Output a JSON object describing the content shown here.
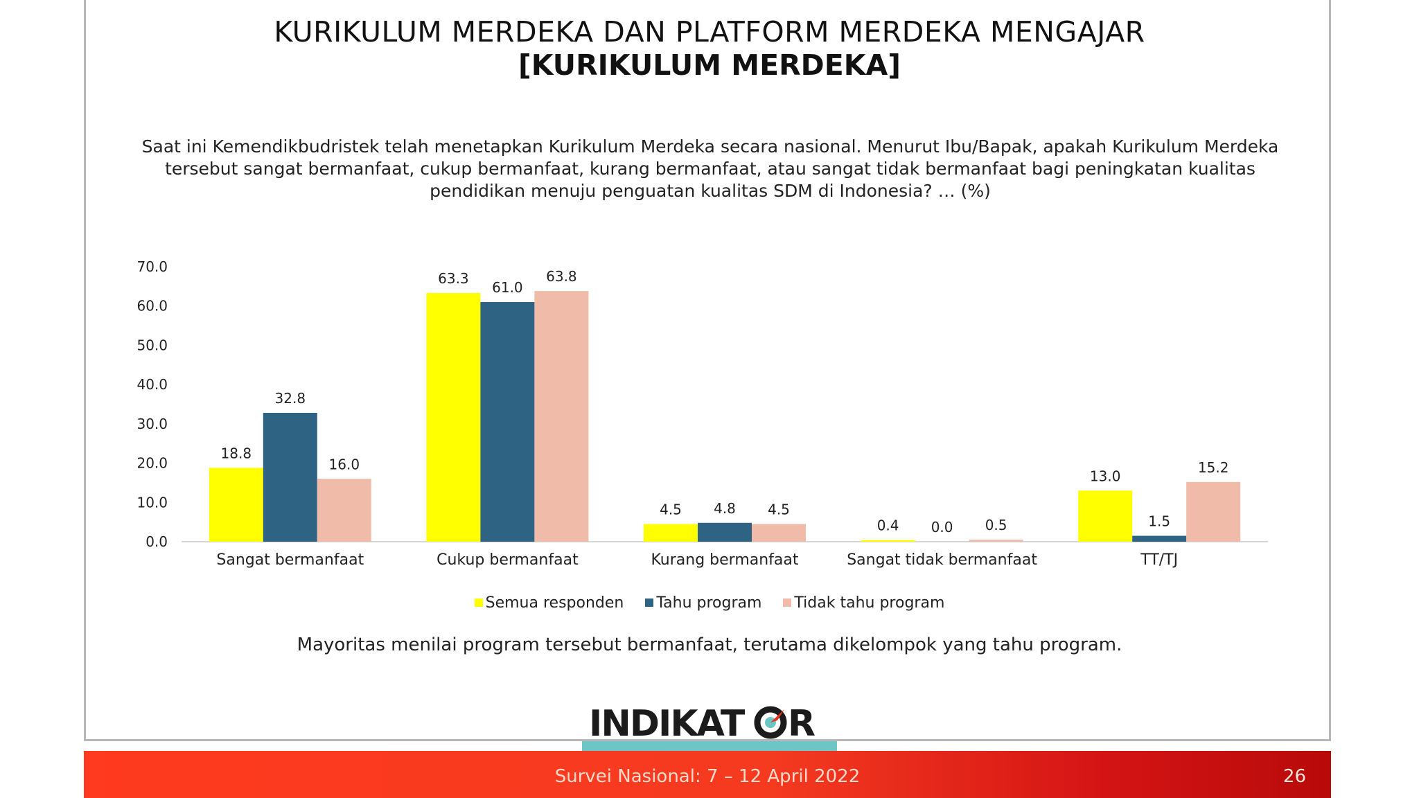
{
  "title": "KURIKULUM MERDEKA DAN PLATFORM MERDEKA MENGAJAR",
  "subtitle": "[KURIKULUM MERDEKA]",
  "question": "Saat ini Kemendikbudristek telah menetapkan Kurikulum Merdeka secara nasional. Menurut Ibu/Bapak, apakah Kurikulum Merdeka tersebut sangat bermanfaat, cukup bermanfaat, kurang bermanfaat, atau sangat tidak bermanfaat bagi peningkatan kualitas pendidikan menuju penguatan kualitas SDM di Indonesia? … (%)",
  "note": "Mayoritas menilai program tersebut bermanfaat, terutama dikelompok yang tahu program.",
  "logo_text": "INDIKATOR",
  "footer": {
    "survey": "Survei Nasional: 7 – 12 April 2022",
    "page": "26"
  },
  "chart_data": {
    "type": "bar",
    "categories": [
      "Sangat bermanfaat",
      "Cukup bermanfaat",
      "Kurang bermanfaat",
      "Sangat tidak bermanfaat",
      "TT/TJ"
    ],
    "series": [
      {
        "name": "Semua responden",
        "color": "#ffff00",
        "values": [
          18.8,
          63.3,
          4.5,
          0.4,
          13.0
        ]
      },
      {
        "name": "Tahu program",
        "color": "#2f6384",
        "values": [
          32.8,
          61.0,
          4.8,
          0.0,
          1.5
        ]
      },
      {
        "name": "Tidak tahu program",
        "color": "#f0bba9",
        "values": [
          16.0,
          63.8,
          4.5,
          0.5,
          15.2
        ]
      }
    ],
    "ylim": [
      0,
      70
    ],
    "yticks": [
      "0.0",
      "10.0",
      "20.0",
      "30.0",
      "40.0",
      "50.0",
      "60.0",
      "70.0"
    ],
    "legend_position": "bottom",
    "grid": false
  }
}
